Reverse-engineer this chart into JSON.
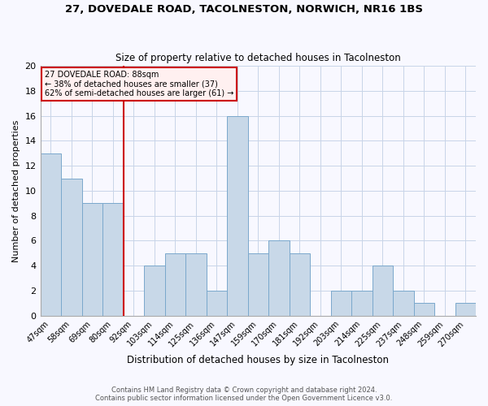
{
  "title1": "27, DOVEDALE ROAD, TACOLNESTON, NORWICH, NR16 1BS",
  "title2": "Size of property relative to detached houses in Tacolneston",
  "xlabel": "Distribution of detached houses by size in Tacolneston",
  "ylabel": "Number of detached properties",
  "footer1": "Contains HM Land Registry data © Crown copyright and database right 2024.",
  "footer2": "Contains public sector information licensed under the Open Government Licence v3.0.",
  "categories": [
    "47sqm",
    "58sqm",
    "69sqm",
    "80sqm",
    "92sqm",
    "103sqm",
    "114sqm",
    "125sqm",
    "136sqm",
    "147sqm",
    "159sqm",
    "170sqm",
    "181sqm",
    "192sqm",
    "203sqm",
    "214sqm",
    "225sqm",
    "237sqm",
    "248sqm",
    "259sqm",
    "270sqm"
  ],
  "values": [
    13,
    11,
    9,
    9,
    0,
    4,
    5,
    5,
    2,
    16,
    5,
    6,
    5,
    0,
    2,
    2,
    4,
    2,
    1,
    0,
    1
  ],
  "bar_color": "#c8d8e8",
  "bar_edge_color": "#7aa8cc",
  "marker_color": "#cc0000",
  "annotation_box_color": "#fff0f0",
  "annotation_border_color": "#cc0000",
  "annotation_title": "27 DOVEDALE ROAD: 88sqm",
  "annotation_line1": "← 38% of detached houses are smaller (37)",
  "annotation_line2": "62% of semi-detached houses are larger (61) →",
  "ylim": [
    0,
    20
  ],
  "yticks": [
    0,
    2,
    4,
    6,
    8,
    10,
    12,
    14,
    16,
    18,
    20
  ],
  "background_color": "#f8f8ff",
  "grid_color": "#c8d4e8",
  "marker_bar_index": 3
}
